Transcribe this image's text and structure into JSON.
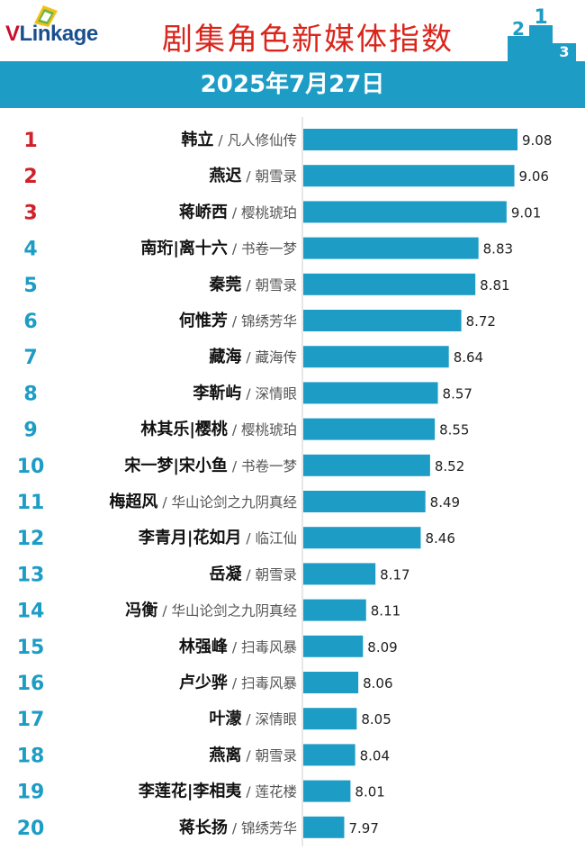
{
  "header": {
    "logo_text_v": "V",
    "logo_text_rest": "Linkage",
    "title": "剧集角色新媒体指数",
    "podium_numbers": [
      "2",
      "1",
      "3"
    ]
  },
  "date": "2025年7月27日",
  "colors": {
    "bar": "#1d9cc6",
    "rank_top": "#d0202a",
    "rank_other": "#1d9cc6",
    "title": "#d9261c",
    "header_band": "#1d9cc6"
  },
  "chart_data": {
    "type": "bar",
    "orientation": "horizontal",
    "title": "剧集角色新媒体指数",
    "subtitle": "2025年7月27日",
    "xlim": [
      0,
      9.08
    ],
    "grid": false,
    "legend": "none",
    "items": [
      {
        "rank": "1",
        "name": "韩立",
        "drama": "凡人修仙传",
        "value": 9.08
      },
      {
        "rank": "2",
        "name": "燕迟",
        "drama": "朝雪录",
        "value": 9.06
      },
      {
        "rank": "3",
        "name": "蒋峤西",
        "drama": "樱桃琥珀",
        "value": 9.01
      },
      {
        "rank": "4",
        "name": "南珩|离十六",
        "drama": "书卷一梦",
        "value": 8.83
      },
      {
        "rank": "5",
        "name": "秦莞",
        "drama": "朝雪录",
        "value": 8.81
      },
      {
        "rank": "6",
        "name": "何惟芳",
        "drama": "锦绣芳华",
        "value": 8.72
      },
      {
        "rank": "7",
        "name": "藏海",
        "drama": "藏海传",
        "value": 8.64
      },
      {
        "rank": "8",
        "name": "李靳屿",
        "drama": "深情眼",
        "value": 8.57
      },
      {
        "rank": "9",
        "name": "林其乐|樱桃",
        "drama": "樱桃琥珀",
        "value": 8.55
      },
      {
        "rank": "10",
        "name": "宋一梦|宋小鱼",
        "drama": "书卷一梦",
        "value": 8.52
      },
      {
        "rank": "11",
        "name": "梅超风",
        "drama": "华山论剑之九阴真经",
        "value": 8.49
      },
      {
        "rank": "12",
        "name": "李青月|花如月",
        "drama": "临江仙",
        "value": 8.46
      },
      {
        "rank": "13",
        "name": "岳凝",
        "drama": "朝雪录",
        "value": 8.17
      },
      {
        "rank": "14",
        "name": "冯衡",
        "drama": "华山论剑之九阴真经",
        "value": 8.11
      },
      {
        "rank": "15",
        "name": "林强峰",
        "drama": "扫毒风暴",
        "value": 8.09
      },
      {
        "rank": "16",
        "name": "卢少骅",
        "drama": "扫毒风暴",
        "value": 8.06
      },
      {
        "rank": "17",
        "name": "叶濛",
        "drama": "深情眼",
        "value": 8.05
      },
      {
        "rank": "18",
        "name": "燕离",
        "drama": "朝雪录",
        "value": 8.04
      },
      {
        "rank": "19",
        "name": "李莲花|李相夷",
        "drama": "莲花楼",
        "value": 8.01
      },
      {
        "rank": "20",
        "name": "蒋长扬",
        "drama": "锦绣芳华",
        "value": 7.97
      }
    ]
  }
}
